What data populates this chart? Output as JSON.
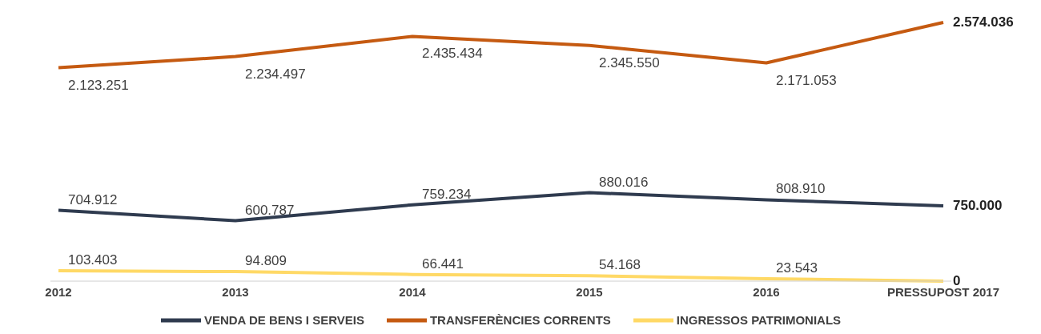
{
  "chart_data": {
    "type": "line",
    "categories": [
      "2012",
      "2013",
      "2014",
      "2015",
      "2016",
      "PRESSUPOST 2017"
    ],
    "series": [
      {
        "name": "VENDA DE BENS I SERVEIS",
        "color": "#2f3b4f",
        "values": [
          704912,
          600787,
          759234,
          880016,
          808910,
          750000
        ],
        "value_labels": [
          "704.912",
          "600.787",
          "759.234",
          "880.016",
          "808.910",
          "750.000"
        ]
      },
      {
        "name": "TRANSFERÈNCIES CORRENTS",
        "color": "#c55a11",
        "values": [
          2123251,
          2234497,
          2435434,
          2345550,
          2171053,
          2574036
        ],
        "value_labels": [
          "2.123.251",
          "2.234.497",
          "2.435.434",
          "2.345.550",
          "2.171.053",
          "2.574.036"
        ]
      },
      {
        "name": "INGRESSOS PATRIMONIALS",
        "color": "#ffd966",
        "values": [
          103403,
          94809,
          66441,
          54168,
          23543,
          0
        ],
        "value_labels": [
          "103.403",
          "94.809",
          "66.441",
          "54.168",
          "23.543",
          "0"
        ]
      }
    ],
    "legend": "bottom",
    "marker": "none",
    "line_style": "solid"
  }
}
